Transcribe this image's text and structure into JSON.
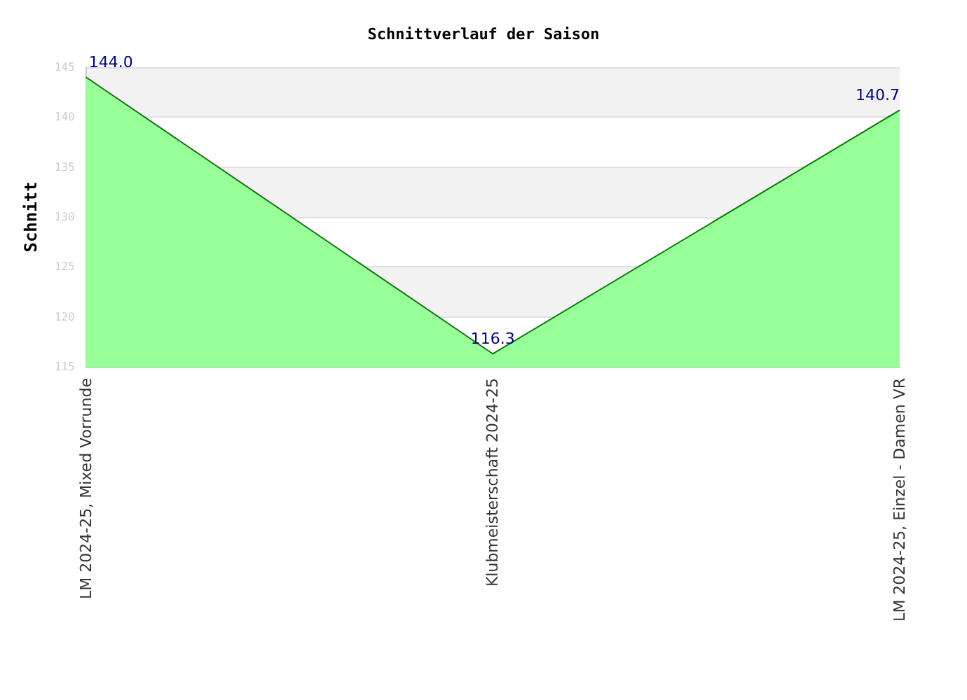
{
  "chart_data": {
    "type": "area",
    "title": "Schnittverlauf der Saison",
    "ylabel": "Schnitt",
    "categories": [
      "LM 2024-25, Mixed Vorrunde",
      "Klubmeisterschaft 2024-25",
      "LM 2024-25, Einzel - Damen VR"
    ],
    "series": [
      {
        "color": "#008000",
        "values": [
          144.0,
          116.3,
          140.7
        ],
        "value_labels": [
          "144.0",
          "116.3",
          "140.7"
        ]
      }
    ],
    "ylim": [
      115,
      145
    ],
    "yticks": [
      115,
      120,
      125,
      130,
      135,
      140,
      145
    ],
    "grid": "y",
    "marker": "none"
  }
}
